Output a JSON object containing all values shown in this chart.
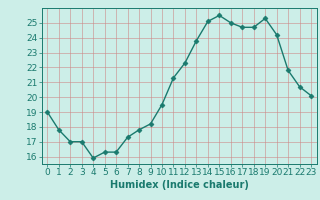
{
  "x": [
    0,
    1,
    2,
    3,
    4,
    5,
    6,
    7,
    8,
    9,
    10,
    11,
    12,
    13,
    14,
    15,
    16,
    17,
    18,
    19,
    20,
    21,
    22,
    23
  ],
  "y": [
    19.0,
    17.8,
    17.0,
    17.0,
    15.9,
    16.3,
    16.3,
    17.3,
    17.8,
    18.2,
    19.5,
    21.3,
    22.3,
    23.8,
    25.1,
    25.5,
    25.0,
    24.7,
    24.7,
    25.3,
    24.2,
    21.8,
    20.7,
    20.1
  ],
  "line_color": "#1a7a6e",
  "marker": "D",
  "marker_size": 2.5,
  "bg_color": "#cceee8",
  "grid_color": "#b0d0cc",
  "xlabel": "Humidex (Indice chaleur)",
  "xlim": [
    -0.5,
    23.5
  ],
  "ylim": [
    15.5,
    26.0
  ],
  "yticks": [
    16,
    17,
    18,
    19,
    20,
    21,
    22,
    23,
    24,
    25
  ],
  "xticks": [
    0,
    1,
    2,
    3,
    4,
    5,
    6,
    7,
    8,
    9,
    10,
    11,
    12,
    13,
    14,
    15,
    16,
    17,
    18,
    19,
    20,
    21,
    22,
    23
  ],
  "xlabel_fontsize": 7,
  "tick_fontsize": 6.5,
  "line_width": 1.0,
  "tick_color": "#1a7a6e",
  "axis_color": "#1a7a6e",
  "grid_linewidth": 0.6,
  "grid_color_major": "#cc9999"
}
